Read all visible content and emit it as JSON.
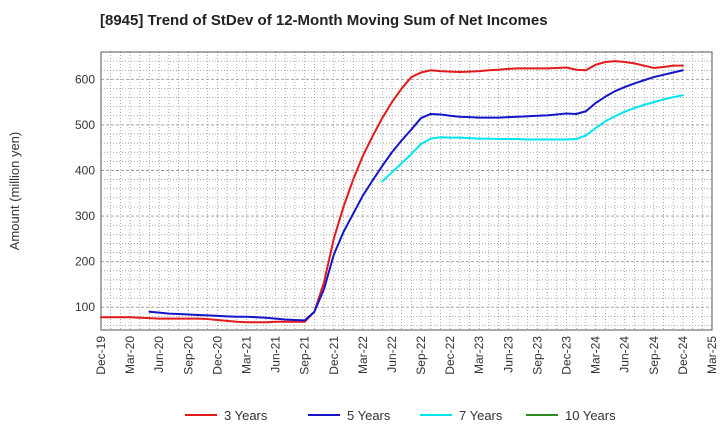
{
  "chart_data": {
    "type": "line",
    "title": "[8945]  Trend of StDev of 12-Month Moving Sum of Net Incomes",
    "xlabel": "",
    "ylabel": "Amount (million yen)",
    "ylim": [
      50,
      660
    ],
    "yticks": [
      100,
      200,
      300,
      400,
      500,
      600
    ],
    "grid": true,
    "legend_position": "bottom",
    "x_tick_labels": [
      "Dec-19",
      "Mar-20",
      "Jun-20",
      "Sep-20",
      "Dec-20",
      "Mar-21",
      "Jun-21",
      "Sep-21",
      "Dec-21",
      "Mar-22",
      "Jun-22",
      "Sep-22",
      "Dec-22",
      "Mar-23",
      "Jun-23",
      "Sep-23",
      "Dec-23",
      "Mar-24",
      "Jun-24",
      "Sep-24",
      "Dec-24",
      "Mar-25"
    ],
    "series": [
      {
        "name": "3 Years",
        "color": "#e31a1c",
        "x": [
          "Dec-19",
          "Jan-20",
          "Feb-20",
          "Mar-20",
          "Apr-20",
          "May-20",
          "Jun-20",
          "Jul-20",
          "Aug-20",
          "Sep-20",
          "Oct-20",
          "Nov-20",
          "Dec-20",
          "Jan-21",
          "Feb-21",
          "Mar-21",
          "Apr-21",
          "May-21",
          "Jun-21",
          "Jul-21",
          "Aug-21",
          "Sep-21",
          "Oct-21",
          "Nov-21",
          "Dec-21",
          "Jan-22",
          "Feb-22",
          "Mar-22",
          "Apr-22",
          "May-22",
          "Jun-22",
          "Jul-22",
          "Aug-22",
          "Sep-22",
          "Oct-22",
          "Nov-22",
          "Dec-22",
          "Jan-23",
          "Feb-23",
          "Mar-23",
          "Apr-23",
          "May-23",
          "Jun-23",
          "Jul-23",
          "Aug-23",
          "Sep-23",
          "Oct-23",
          "Nov-23",
          "Dec-23",
          "Jan-24",
          "Feb-24",
          "Mar-24",
          "Apr-24",
          "May-24",
          "Jun-24",
          "Jul-24",
          "Aug-24",
          "Sep-24",
          "Oct-24",
          "Nov-24",
          "Dec-24"
        ],
        "values": [
          78,
          78,
          78,
          78,
          77,
          76,
          75,
          75,
          75,
          75,
          75,
          74,
          72,
          70,
          68,
          67,
          67,
          67,
          68,
          68,
          68,
          68,
          90,
          155,
          250,
          320,
          380,
          432,
          475,
          515,
          550,
          580,
          605,
          615,
          620,
          618,
          617,
          616,
          617,
          618,
          620,
          621,
          623,
          624,
          624,
          624,
          624,
          625,
          626,
          621,
          620,
          632,
          638,
          640,
          638,
          635,
          630,
          625,
          627,
          630,
          630
        ]
      },
      {
        "name": "5 Years",
        "color": "#1515c8",
        "x": [
          "May-20",
          "Jun-20",
          "Jul-20",
          "Aug-20",
          "Sep-20",
          "Oct-20",
          "Nov-20",
          "Dec-20",
          "Jan-21",
          "Feb-21",
          "Mar-21",
          "Apr-21",
          "May-21",
          "Jun-21",
          "Jul-21",
          "Aug-21",
          "Sep-21",
          "Oct-21",
          "Nov-21",
          "Dec-21",
          "Jan-22",
          "Feb-22",
          "Mar-22",
          "Apr-22",
          "May-22",
          "Jun-22",
          "Jul-22",
          "Aug-22",
          "Sep-22",
          "Oct-22",
          "Nov-22",
          "Dec-22",
          "Jan-23",
          "Feb-23",
          "Mar-23",
          "Apr-23",
          "May-23",
          "Jun-23",
          "Jul-23",
          "Aug-23",
          "Sep-23",
          "Oct-23",
          "Nov-23",
          "Dec-23",
          "Jan-24",
          "Feb-24",
          "Mar-24",
          "Apr-24",
          "May-24",
          "Jun-24",
          "Jul-24",
          "Aug-24",
          "Sep-24",
          "Oct-24",
          "Nov-24",
          "Dec-24"
        ],
        "values": [
          90,
          88,
          86,
          85,
          84,
          83,
          82,
          81,
          80,
          79,
          79,
          78,
          77,
          75,
          73,
          72,
          71,
          90,
          140,
          215,
          265,
          305,
          345,
          378,
          410,
          440,
          466,
          490,
          515,
          524,
          523,
          520,
          518,
          517,
          516,
          516,
          516,
          517,
          518,
          519,
          520,
          521,
          523,
          525,
          524,
          530,
          548,
          562,
          574,
          583,
          591,
          598,
          605,
          610,
          615,
          620
        ]
      },
      {
        "name": "7 Years",
        "color": "#00e5ee",
        "x": [
          "May-22",
          "Jun-22",
          "Jul-22",
          "Aug-22",
          "Sep-22",
          "Oct-22",
          "Nov-22",
          "Dec-22",
          "Jan-23",
          "Feb-23",
          "Mar-23",
          "Apr-23",
          "May-23",
          "Jun-23",
          "Jul-23",
          "Aug-23",
          "Sep-23",
          "Oct-23",
          "Nov-23",
          "Dec-23",
          "Jan-24",
          "Feb-24",
          "Mar-24",
          "Apr-24",
          "May-24",
          "Jun-24",
          "Jul-24",
          "Aug-24",
          "Sep-24",
          "Oct-24",
          "Nov-24",
          "Dec-24"
        ],
        "values": [
          376,
          396,
          416,
          436,
          458,
          470,
          473,
          472,
          472,
          471,
          470,
          470,
          469,
          469,
          469,
          468,
          468,
          468,
          468,
          468,
          469,
          477,
          493,
          508,
          519,
          529,
          537,
          544,
          550,
          556,
          561,
          565
        ]
      },
      {
        "name": "10 Years",
        "color": "#2e8b22",
        "x": [],
        "values": []
      }
    ]
  }
}
